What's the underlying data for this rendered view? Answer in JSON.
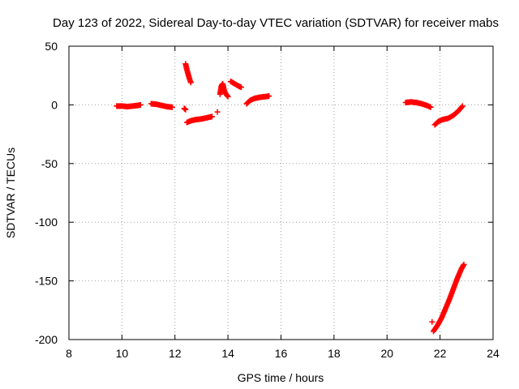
{
  "chart_data": {
    "type": "scatter",
    "title": "Day 123 of 2022, Sidereal Day-to-day VTEC variation (SDTVAR) for receiver mabs",
    "xlabel": "GPS time / hours",
    "ylabel": "SDTVAR / TECUs",
    "xlim": [
      8,
      24
    ],
    "ylim": [
      -200,
      50
    ],
    "xticks": [
      8,
      10,
      12,
      14,
      16,
      18,
      20,
      22,
      24
    ],
    "yticks": [
      -200,
      -150,
      -100,
      -50,
      0,
      50
    ],
    "grid": true,
    "marker": "plus",
    "color": "#ff0000",
    "series": [
      {
        "name": "seg1",
        "points": [
          [
            9.8,
            -1
          ],
          [
            10.0,
            -1
          ],
          [
            10.2,
            -1.5
          ],
          [
            10.4,
            -1
          ],
          [
            10.6,
            -0.5
          ],
          [
            10.7,
            0
          ]
        ]
      },
      {
        "name": "seg2",
        "points": [
          [
            11.1,
            1
          ],
          [
            11.3,
            0.5
          ],
          [
            11.5,
            -0.5
          ],
          [
            11.7,
            -1.5
          ],
          [
            11.9,
            -2
          ]
        ]
      },
      {
        "name": "seg3",
        "points": [
          [
            12.35,
            -3
          ],
          [
            12.4,
            -4
          ]
        ]
      },
      {
        "name": "seg4",
        "points": [
          [
            12.4,
            35
          ],
          [
            12.45,
            30
          ],
          [
            12.5,
            26
          ],
          [
            12.55,
            22
          ],
          [
            12.6,
            19
          ]
        ]
      },
      {
        "name": "seg5",
        "points": [
          [
            12.45,
            -15
          ],
          [
            12.6,
            -13.5
          ],
          [
            12.8,
            -12.5
          ],
          [
            13.0,
            -12
          ],
          [
            13.2,
            -11
          ],
          [
            13.4,
            -10
          ]
        ]
      },
      {
        "name": "seg6",
        "points": [
          [
            13.6,
            -6
          ]
        ]
      },
      {
        "name": "seg7",
        "points": [
          [
            13.7,
            9
          ],
          [
            13.75,
            16
          ],
          [
            13.8,
            18
          ],
          [
            13.85,
            13
          ],
          [
            13.9,
            10
          ],
          [
            14.0,
            7
          ]
        ]
      },
      {
        "name": "seg8",
        "points": [
          [
            14.1,
            20
          ],
          [
            14.25,
            18
          ],
          [
            14.4,
            16
          ],
          [
            14.5,
            15
          ]
        ]
      },
      {
        "name": "seg9",
        "points": [
          [
            14.7,
            1
          ],
          [
            14.85,
            4
          ],
          [
            15.0,
            5.5
          ],
          [
            15.2,
            6.5
          ],
          [
            15.4,
            7
          ],
          [
            15.55,
            7.5
          ]
        ]
      },
      {
        "name": "seg10",
        "points": [
          [
            20.7,
            2
          ],
          [
            20.9,
            2.5
          ],
          [
            21.1,
            2
          ],
          [
            21.3,
            1
          ],
          [
            21.5,
            -0.5
          ],
          [
            21.65,
            -2
          ]
        ]
      },
      {
        "name": "seg11",
        "points": [
          [
            21.8,
            -17
          ],
          [
            21.95,
            -14
          ],
          [
            22.1,
            -12.5
          ],
          [
            22.3,
            -11.5
          ],
          [
            22.5,
            -9
          ],
          [
            22.7,
            -5
          ],
          [
            22.85,
            -1
          ]
        ]
      },
      {
        "name": "seg12",
        "points": [
          [
            21.7,
            -185
          ]
        ]
      },
      {
        "name": "seg13",
        "points": [
          [
            21.75,
            -193
          ],
          [
            21.9,
            -188
          ],
          [
            22.05,
            -182
          ],
          [
            22.2,
            -174
          ],
          [
            22.35,
            -166
          ],
          [
            22.5,
            -157
          ],
          [
            22.65,
            -148
          ],
          [
            22.8,
            -140
          ],
          [
            22.9,
            -136
          ]
        ]
      }
    ]
  }
}
